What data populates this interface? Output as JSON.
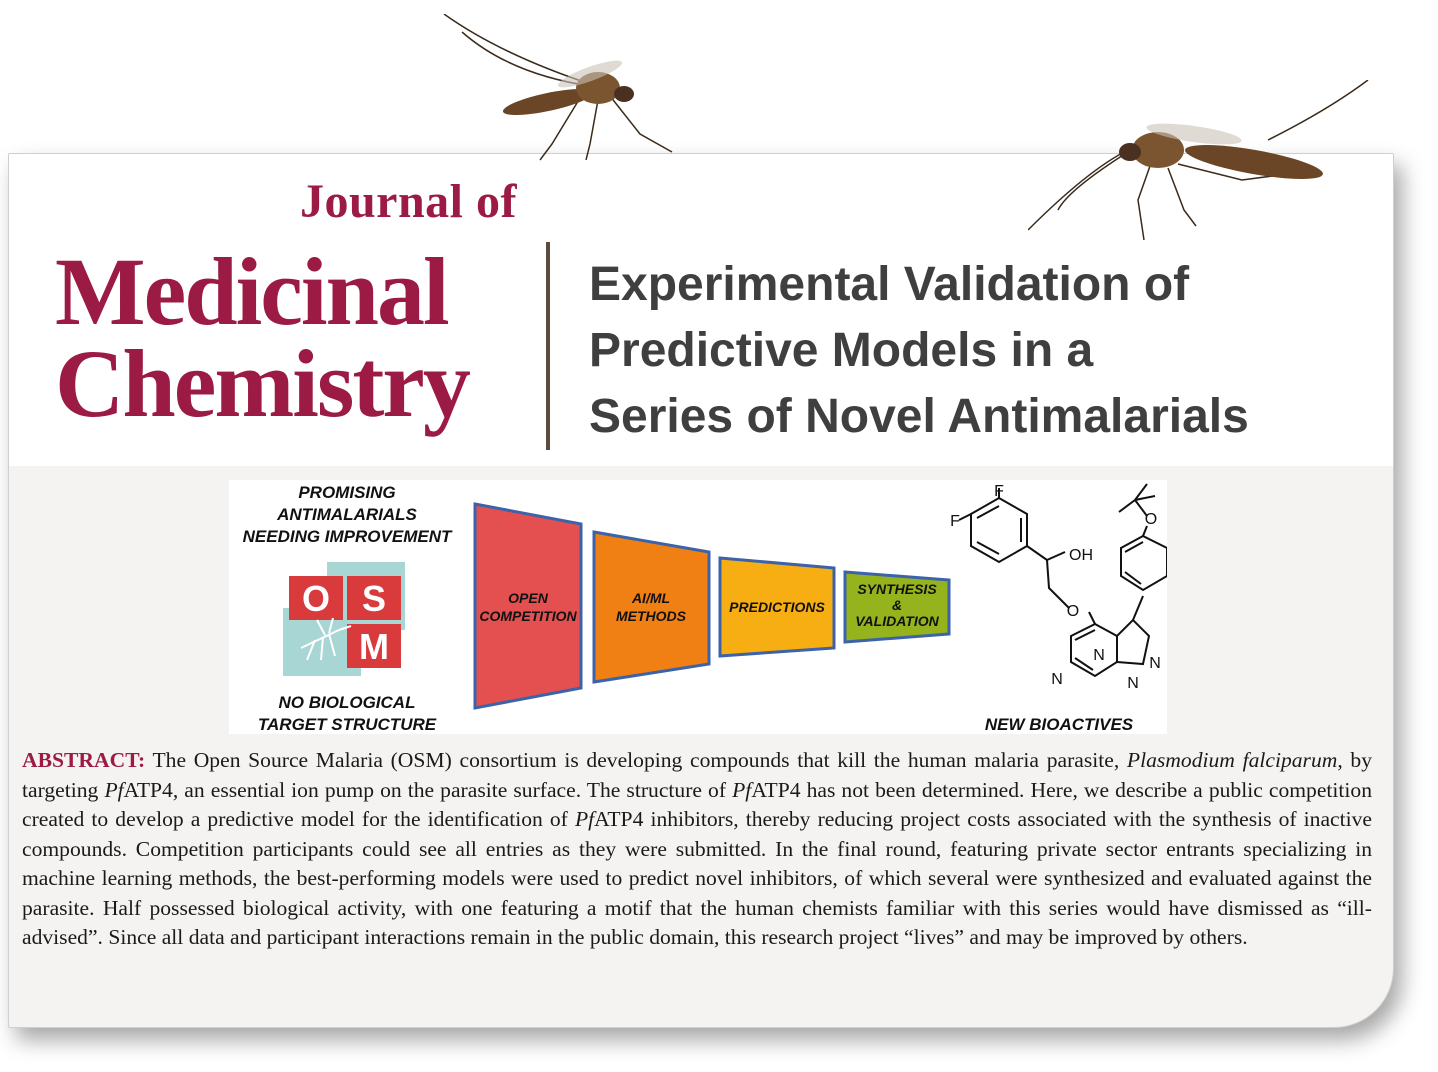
{
  "journal": {
    "line_of": "Journal of",
    "line_medicinal": "Medicinal",
    "line_chemistry": "Chemistry"
  },
  "article": {
    "title_lines": [
      "Experimental Validation of",
      "Predictive Models in a",
      "Series of Novel Antimalarials"
    ]
  },
  "graphic": {
    "top_left_label": [
      "PROMISING",
      "ANTIMALARIALS",
      "NEEDING IMPROVEMENT"
    ],
    "bottom_left_label": [
      "NO BIOLOGICAL",
      "TARGET STRUCTURE"
    ],
    "logo_letters": [
      "O",
      "S",
      "M"
    ],
    "stages": [
      {
        "lines": [
          "OPEN",
          "COMPETITION"
        ],
        "color": "#e3504f"
      },
      {
        "lines": [
          "AI/ML",
          "METHODS"
        ],
        "color": "#f07f14"
      },
      {
        "lines": [
          "PREDICTIONS"
        ],
        "color": "#f7ae12"
      },
      {
        "lines": [
          "SYNTHESIS",
          "&",
          "VALIDATION"
        ],
        "color": "#95b31c"
      }
    ],
    "right_label": "NEW BIOACTIVES",
    "molecule_atoms": {
      "f1": "F",
      "f2": "F",
      "oh": "OH",
      "o1": "O",
      "o2": "O",
      "n1": "N",
      "n2": "N",
      "n3": "N",
      "n4": "N"
    }
  },
  "abstract": {
    "label": "ABSTRACT:",
    "s1": " The Open Source Malaria (OSM) consortium is developing compounds that kill the human malaria parasite, ",
    "species": "Plasmodium falciparum",
    "s2": ", by targeting ",
    "pf1": "Pf",
    "s3": "ATP4, an essential ion pump on the parasite surface. The structure of ",
    "pf2": "Pf",
    "s4": "ATP4 has not been determined. Here, we describe a public competition created to develop a predictive model for the identification of ",
    "pf3": "Pf",
    "s5": "ATP4 inhibitors, thereby reducing project costs associated with the synthesis of inactive compounds. Competition participants could see all entries as they were submitted. In the final round, featuring private sector entrants specializing in machine learning methods, the best-performing models were used to predict novel inhibitors, of which several were synthesized and evaluated against the parasite. Half possessed biological activity, with one featuring a motif that the human chemists familiar with this series would have dismissed as “ill-advised”. Since all data and participant interactions remain in the public domain, this research project “lives” and may be improved by others."
  },
  "colors": {
    "journal_red": "#9b1b44",
    "title_gray": "#3f3f3f",
    "logo_red": "#d93a3c",
    "logo_teal": "#a7d6d4"
  }
}
